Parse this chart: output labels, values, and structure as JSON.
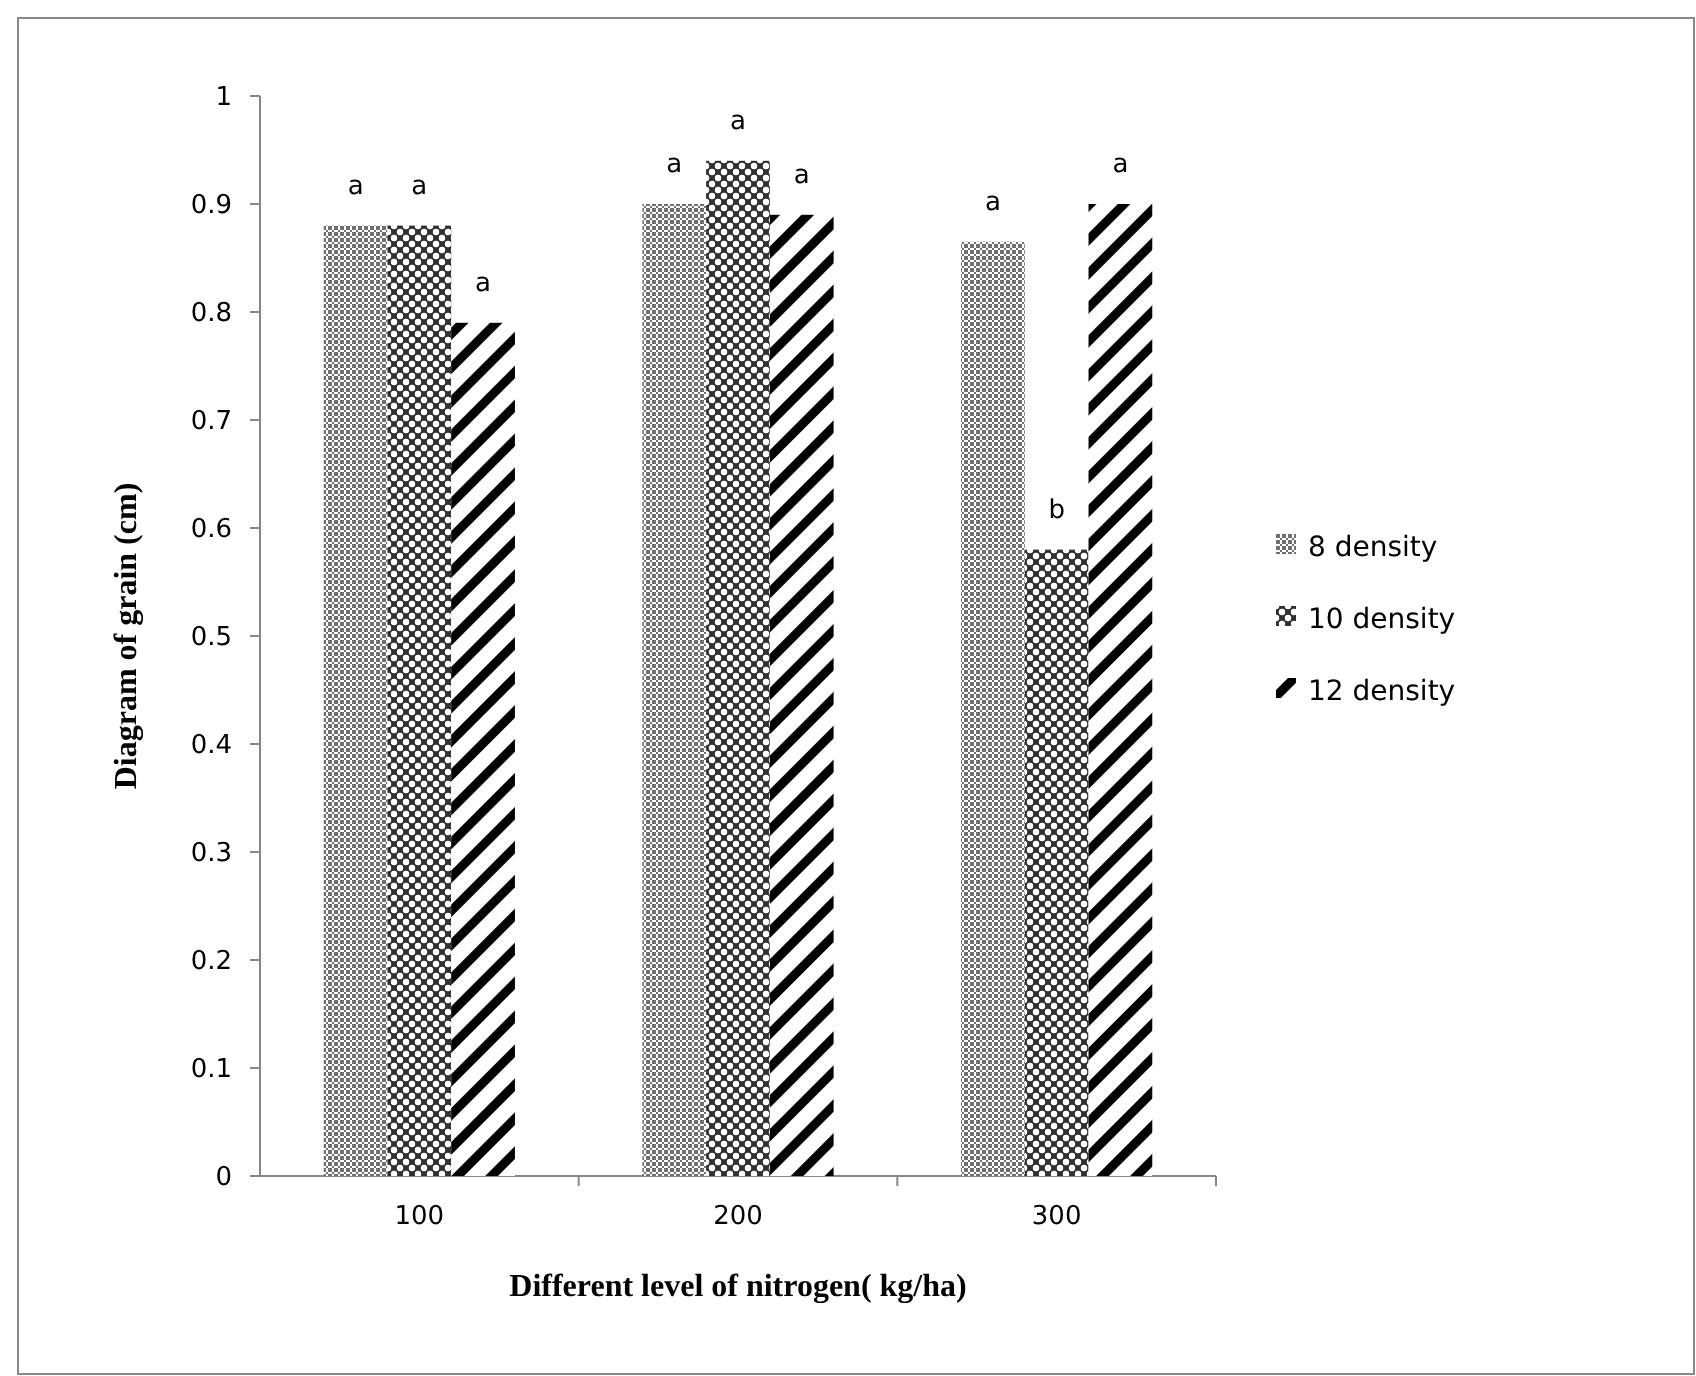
{
  "chart_data": {
    "type": "bar",
    "xlabel": "Different level of nitrogen( kg/ha)",
    "ylabel": "Diagram of grain (cm)",
    "categories": [
      "100",
      "200",
      "300"
    ],
    "series": [
      {
        "name": "8 density",
        "color": "#707070",
        "values": [
          0.88,
          0.9,
          0.865
        ],
        "value_labels": [
          "a",
          "a",
          "a"
        ]
      },
      {
        "name": "10 density",
        "color": "#303030",
        "values": [
          0.88,
          0.94,
          0.58
        ],
        "value_labels": [
          "a",
          "a",
          "b"
        ]
      },
      {
        "name": "12 density",
        "color": "#000000",
        "values": [
          0.79,
          0.89,
          0.9
        ],
        "value_labels": [
          "a",
          "a",
          "a"
        ]
      }
    ],
    "ylim": [
      0,
      1
    ],
    "yticks": [
      0,
      0.1,
      0.2,
      0.3,
      0.4,
      0.5,
      0.6,
      0.7,
      0.8,
      0.9,
      1
    ],
    "legend": "right",
    "grid": false
  }
}
